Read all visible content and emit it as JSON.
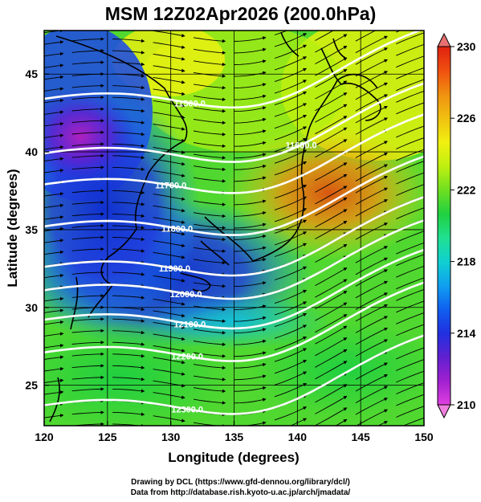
{
  "title": "MSM 12Z02Apr2026 (200.0hPa)",
  "x_axis": {
    "label": "Longitude (degrees)",
    "ticks": [
      120,
      125,
      130,
      135,
      140,
      145,
      150
    ]
  },
  "y_axis": {
    "label": "Latitude  (degrees)",
    "ticks": [
      25,
      30,
      35,
      40,
      45
    ]
  },
  "colorbar": {
    "ticks": [
      210,
      214,
      218,
      222,
      226,
      230
    ],
    "min": 210,
    "max": 230,
    "colors": [
      "#e040e0",
      "#a020d0",
      "#6020d0",
      "#2030e0",
      "#1060f0",
      "#10a0f0",
      "#10d0d0",
      "#20e090",
      "#20d040",
      "#70e020",
      "#c0f010",
      "#f0f010",
      "#f0c010",
      "#f09010",
      "#f05010",
      "#e02010"
    ]
  },
  "contours": [
    {
      "value": "11500.0",
      "label": "11500.0",
      "lat": 45.0,
      "label_lon": 131.5
    },
    {
      "value": "11600.0",
      "label": "11600.0",
      "lat": 41.5,
      "label_lon": 140.3
    },
    {
      "value": "11700.0",
      "label": "11700.0",
      "lat": 39.5,
      "label_lon": 130.0
    },
    {
      "value": "11800.0",
      "label": "11800.0",
      "lat": 36.8,
      "label_lon": 130.5
    },
    {
      "value": "11900.0",
      "label": "11900.0",
      "lat": 34.2,
      "label_lon": 130.3
    },
    {
      "value": "12000.0",
      "label": "12000.0",
      "lat": 32.7,
      "label_lon": 131.2
    },
    {
      "value": "12100.0",
      "label": "12100.0",
      "lat": 30.8,
      "label_lon": 131.5
    },
    {
      "value": "12200.0",
      "label": "12200.0",
      "lat": 28.7,
      "label_lon": 131.3
    },
    {
      "value": "12300.0",
      "label": "12300.0",
      "lat": 25.3,
      "label_lon": 131.3
    }
  ],
  "credit": {
    "line1": "Drawing by DCL (https://www.gfd-dennou.org/library/dcl/)",
    "line2": "Data from http://database.rish.kyoto-u.ac.jp/arch/jmadata/"
  }
}
